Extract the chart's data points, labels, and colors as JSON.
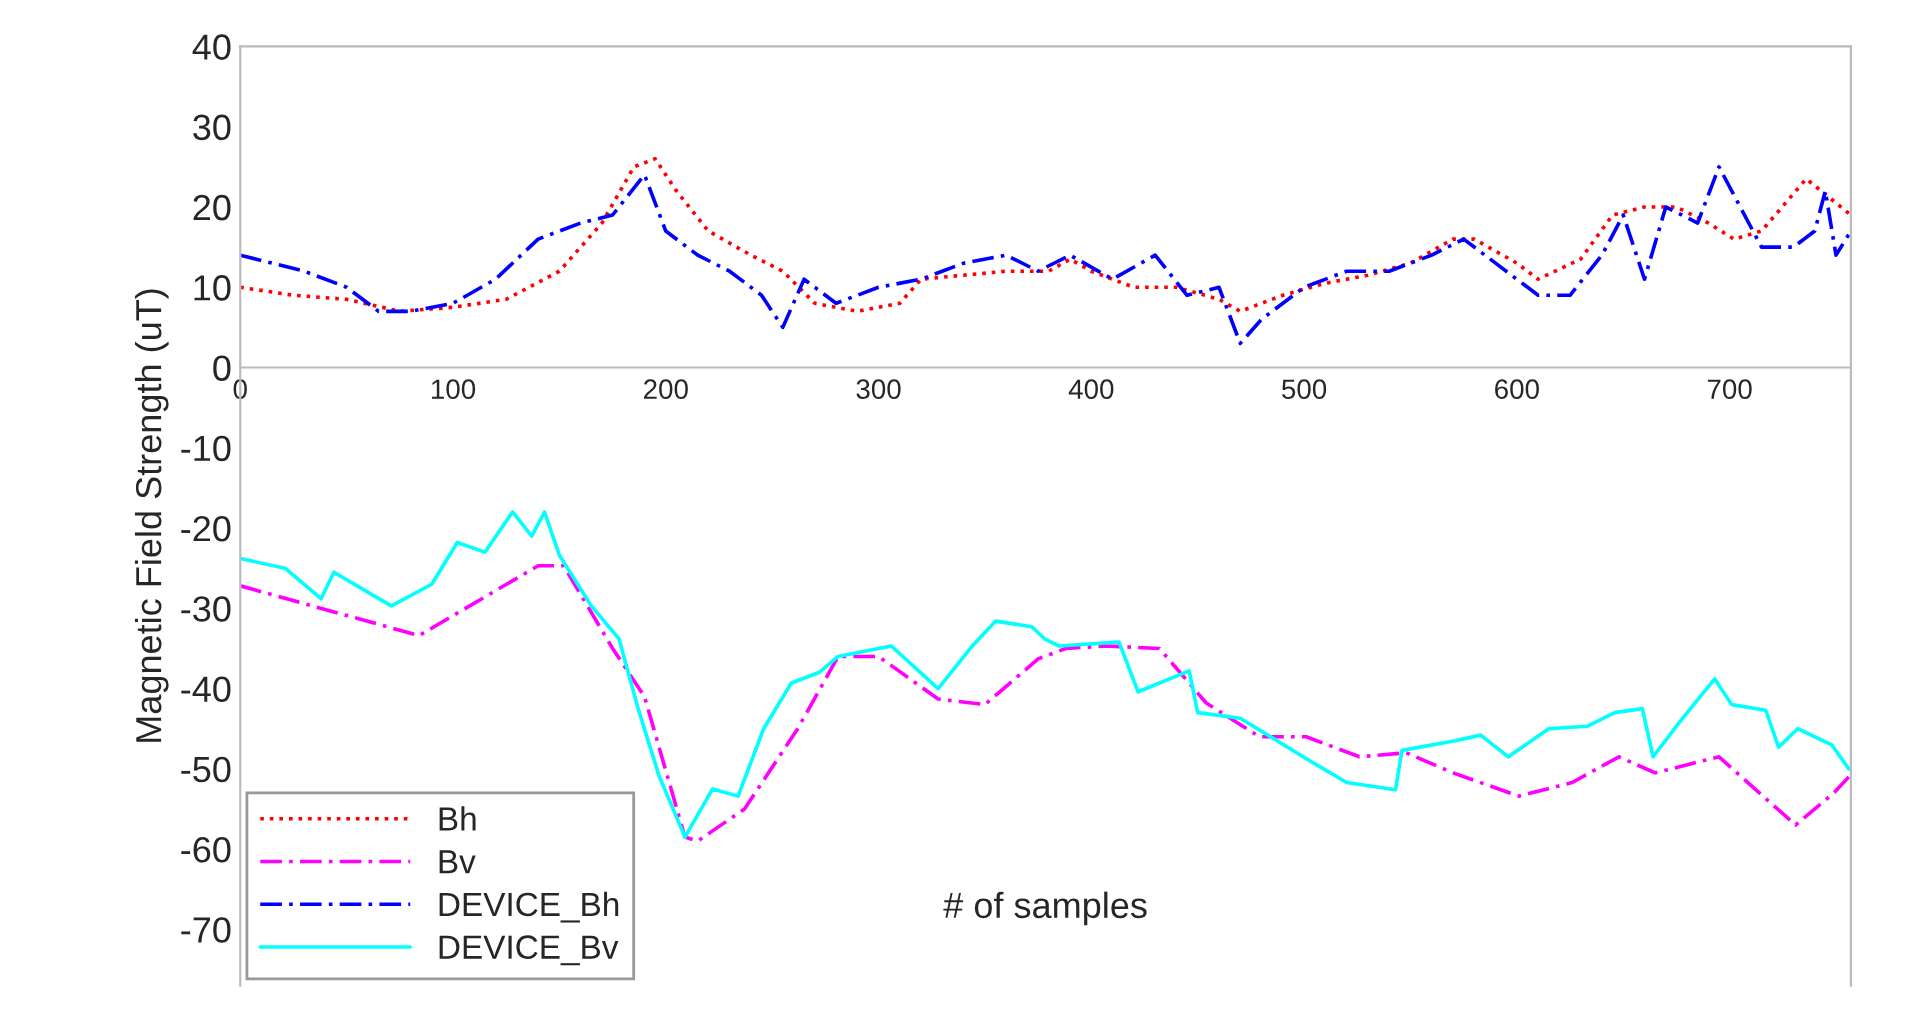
{
  "chart_data": {
    "type": "line",
    "xlabel": "# of samples",
    "ylabel": "Magnetic Field Strength (uT)",
    "xlim": [
      0,
      757
    ],
    "xticks": [
      0,
      100,
      200,
      300,
      400,
      500,
      600,
      700
    ],
    "ylim": [
      -77,
      40
    ],
    "yticks": [
      -70,
      -60,
      -50,
      -40,
      -30,
      -20,
      -10,
      0,
      10,
      20,
      30,
      40
    ],
    "grid": false,
    "legend": "bottom left",
    "marker": "none",
    "series": [
      {
        "name": "Bh",
        "color": "#ff0000",
        "line_style": "dotted",
        "x": [
          0,
          25,
          50,
          75,
          100,
          125,
          150,
          170,
          185,
          195,
          205,
          220,
          240,
          255,
          270,
          290,
          310,
          320,
          340,
          360,
          380,
          390,
          400,
          420,
          440,
          460,
          470,
          490,
          510,
          530,
          550,
          570,
          580,
          600,
          610,
          630,
          645,
          660,
          675,
          690,
          702,
          715,
          736,
          757
        ],
        "values": [
          10,
          9,
          8.5,
          7,
          7.5,
          8.5,
          12,
          18,
          25,
          26,
          22,
          17,
          14,
          12,
          8,
          7,
          8,
          11,
          11.5,
          12,
          12,
          13.5,
          12,
          10,
          10,
          8.5,
          7,
          9,
          10.5,
          11.5,
          13,
          16,
          16,
          13,
          11,
          13.5,
          19,
          20,
          20,
          18,
          16,
          17,
          23.5,
          19
        ]
      },
      {
        "name": "Bv",
        "color": "#ff00ff",
        "line_style": "dashed",
        "x": [
          0,
          84,
          140,
          152,
          175,
          190,
          209,
          215,
          237,
          262,
          281,
          300,
          328,
          350,
          375,
          388,
          407,
          432,
          454,
          479,
          501,
          526,
          548,
          570,
          601,
          626,
          648,
          665,
          695,
          714,
          731,
          749,
          756
        ],
        "values": [
          -27.2,
          -33.4,
          -24.7,
          -24.7,
          -35,
          -41,
          -58.5,
          -59,
          -55,
          -45,
          -36,
          -36,
          -41.3,
          -42,
          -36.3,
          -35,
          -34.7,
          -35,
          -41.8,
          -46,
          -46,
          -48.5,
          -48,
          -50.5,
          -53.4,
          -51.7,
          -48.5,
          -50.5,
          -48.5,
          -53,
          -57,
          -53,
          -51
        ]
      },
      {
        "name": "DEVICE_Bh",
        "color": "#0000ff",
        "line_style": "dashed",
        "x": [
          0,
          15,
          30,
          50,
          65,
          80,
          100,
          120,
          140,
          160,
          175,
          190,
          200,
          215,
          230,
          245,
          255,
          265,
          280,
          300,
          320,
          340,
          360,
          375,
          390,
          410,
          430,
          445,
          460,
          470,
          480,
          500,
          520,
          540,
          560,
          575,
          590,
          610,
          625,
          640,
          650,
          660,
          670,
          685,
          695,
          705,
          715,
          730,
          740,
          745,
          750,
          757
        ],
        "values": [
          14,
          13,
          12,
          10,
          7,
          7,
          8,
          11,
          16,
          18,
          19,
          24,
          17,
          14,
          12,
          9,
          5,
          11,
          8,
          10,
          11,
          13,
          14,
          12,
          14,
          11,
          14,
          9,
          10,
          3,
          6,
          10,
          12,
          12,
          14,
          16,
          13,
          9,
          9,
          14,
          19,
          11,
          20,
          18,
          25,
          20,
          15,
          15,
          17,
          22,
          14,
          17
        ]
      },
      {
        "name": "DEVICE_Bv",
        "color": "#00ffff",
        "line_style": "solid",
        "x": [
          0,
          21,
          38,
          44,
          71,
          90,
          102,
          115,
          128,
          137,
          143,
          150,
          165,
          178,
          187,
          197,
          209,
          222,
          234,
          246,
          259,
          272,
          281,
          306,
          328,
          344,
          355,
          372,
          378,
          385,
          413,
          422,
          446,
          450,
          470,
          504,
          520,
          543,
          546,
          571,
          583,
          596,
          615,
          633,
          646,
          659,
          664,
          677,
          693,
          701,
          717,
          723,
          732,
          748,
          756
        ],
        "values": [
          -23.8,
          -25,
          -28.8,
          -25.5,
          -29.7,
          -27,
          -21.8,
          -23,
          -18,
          -21,
          -18,
          -23.4,
          -29.7,
          -33.8,
          -42.5,
          -51,
          -58.5,
          -52.5,
          -53.4,
          -45,
          -39.3,
          -38,
          -36,
          -34.7,
          -40,
          -34.7,
          -31.6,
          -32.3,
          -33.8,
          -34.7,
          -34.2,
          -40.4,
          -37.8,
          -43,
          -43.7,
          -49.2,
          -51.7,
          -52.6,
          -47.7,
          -46.5,
          -45.8,
          -48.5,
          -45,
          -44.7,
          -43,
          -42.5,
          -48.5,
          -44,
          -38.8,
          -42,
          -42.7,
          -47.3,
          -45,
          -47,
          -50
        ]
      }
    ]
  }
}
